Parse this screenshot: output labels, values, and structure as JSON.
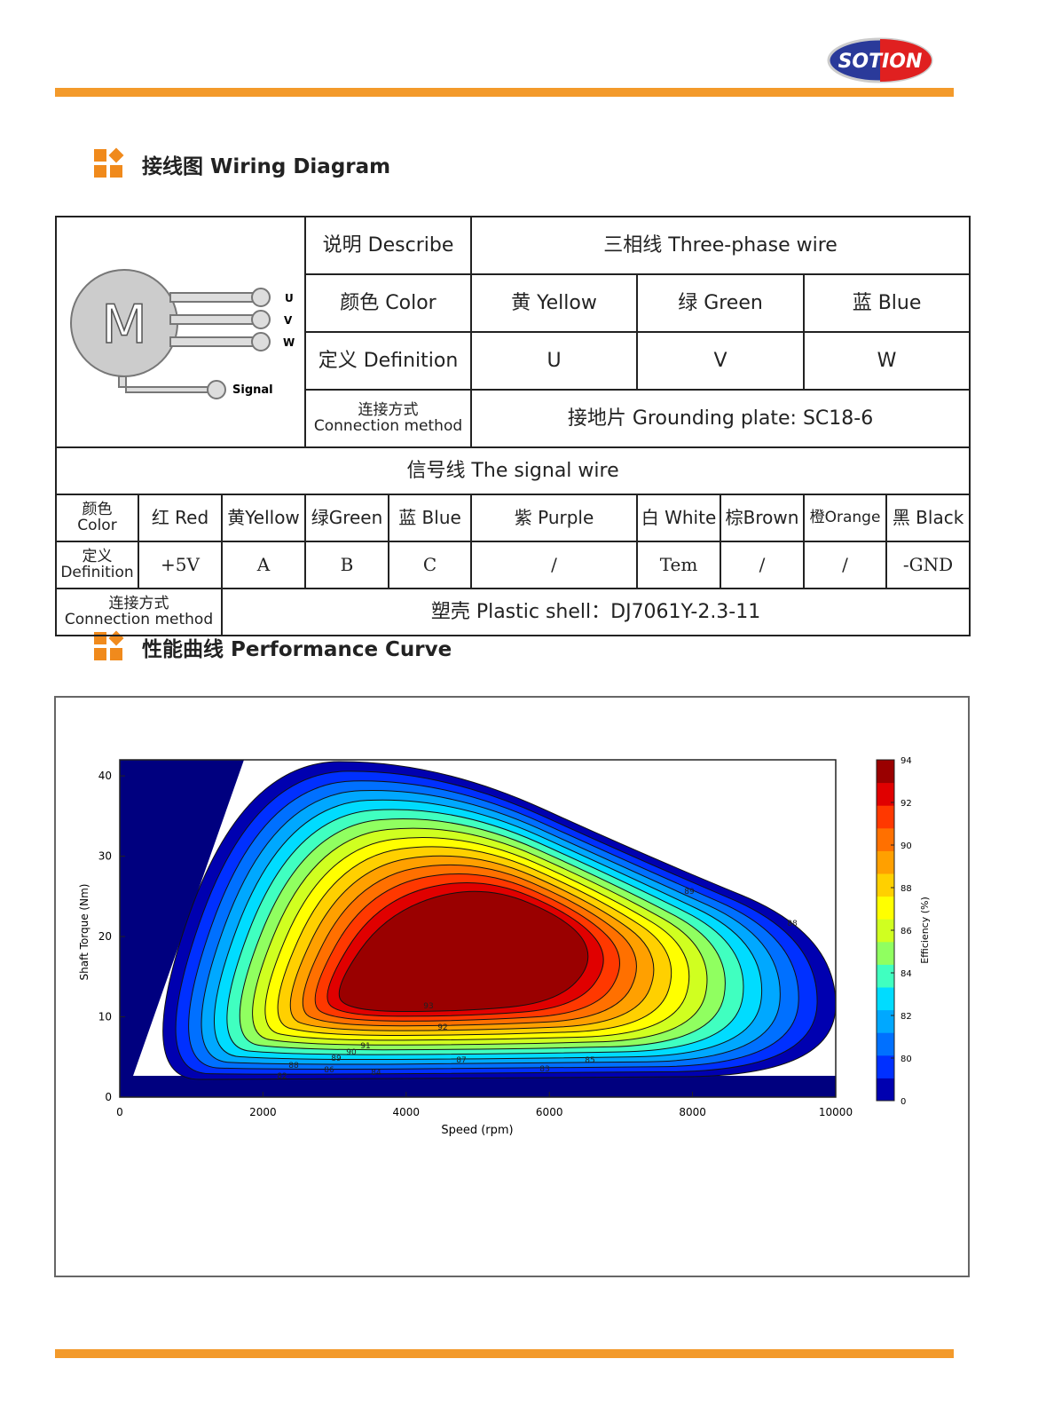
{
  "header": {
    "logo": "SOTION"
  },
  "sections": [
    {
      "title": "接线图 Wiring Diagram"
    },
    {
      "title": "性能曲线 Performance Curve"
    }
  ],
  "diagram": {
    "motor": "M",
    "wires": [
      "U",
      "V",
      "W"
    ],
    "signal": "Signal"
  },
  "table": {
    "rows": [
      [
        "说明 Describe",
        "三相线 Three-phase wire"
      ],
      [
        "颜色 Color",
        "黄 Yellow",
        "绿 Green",
        "蓝 Blue"
      ],
      [
        "定义 Definition",
        "U",
        "V",
        "W"
      ],
      [
        "连接方式\nConnection method",
        "接地片 Grounding plate: SC18-6"
      ],
      [
        "信号线 The signal wire"
      ],
      [
        "颜色\nColor",
        "红 Red",
        "黄Yellow",
        "绿Green",
        "蓝 Blue",
        "紫 Purple",
        "白 White",
        "棕Brown",
        "橙Orange",
        "黑 Black"
      ],
      [
        "定义\nDefinition",
        "+5V",
        "A",
        "B",
        "C",
        "/",
        "Tem",
        "/",
        "/",
        "-GND"
      ],
      [
        "连接方式\nConnection method",
        "塑壳 Plastic shell：DJ7061Y-2.3-11"
      ]
    ]
  },
  "chart_data": {
    "type": "contour",
    "x_label": "Speed (rpm)",
    "y_label": "Shaft Torque (Nm)",
    "xlim": [
      0,
      10000
    ],
    "ylim": [
      0,
      42
    ],
    "xticks": [
      0,
      2000,
      4000,
      6000,
      8000,
      10000
    ],
    "yticks": [
      0,
      10,
      20,
      30,
      40
    ],
    "background_color": "#00007f",
    "contour_colors": [
      "#0000b0",
      "#0030ff",
      "#0070ff",
      "#00a8ff",
      "#00dcff",
      "#40ffc0",
      "#90ff60",
      "#d0ff20",
      "#ffff00",
      "#ffd000",
      "#ffa000",
      "#ff7000",
      "#ff3800",
      "#e00000",
      "#9a0000"
    ],
    "contour_labels": [
      89,
      88,
      93,
      92,
      91,
      90,
      89,
      88,
      86,
      84,
      87,
      85,
      83,
      82
    ],
    "colorbar": {
      "label": "Efficiency (%)",
      "ticks": [
        0,
        80,
        82,
        84,
        86,
        88,
        90,
        92,
        94
      ]
    }
  }
}
